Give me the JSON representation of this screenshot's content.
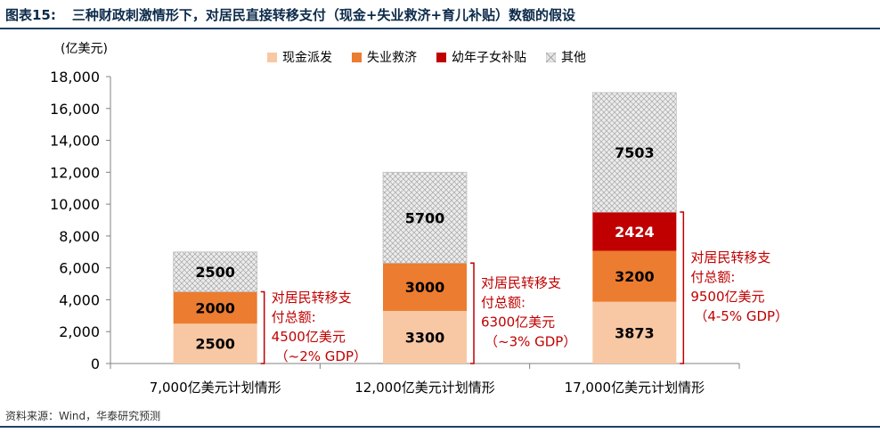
{
  "header": {
    "figure_no": "图表15:",
    "title": "三种财政刺激情形下，对居民直接转移支付（现金+失业救济+育儿补贴）数额的假设"
  },
  "footer": {
    "source": "资料来源：Wind，华泰研究预测"
  },
  "colors": {
    "cash": "#f8c8a4",
    "unemployment": "#ec7c30",
    "child": "#c00000",
    "other": "#bfbfbf",
    "annotation": "#c00000",
    "title_rule": "#1f3f66"
  },
  "chart_data": {
    "type": "bar",
    "stacked": true,
    "unit_label": "(亿美元)",
    "ylim": [
      0,
      18000
    ],
    "yticks": [
      "0",
      "2,000",
      "4,000",
      "6,000",
      "8,000",
      "10,000",
      "12,000",
      "14,000",
      "16,000",
      "18,000"
    ],
    "categories": [
      "7,000亿美元计划情形",
      "12,000亿美元计划情形",
      "17,000亿美元计划情形"
    ],
    "series": [
      {
        "name": "现金派发",
        "values": [
          2500,
          3300,
          3873
        ],
        "labels": [
          "2500",
          "3300",
          "3873"
        ]
      },
      {
        "name": "失业救济",
        "values": [
          2000,
          3000,
          3200
        ],
        "labels": [
          "2000",
          "3000",
          "3200"
        ]
      },
      {
        "name": "幼年子女补贴",
        "values": [
          0,
          0,
          2424
        ],
        "labels": [
          "",
          "",
          "2424"
        ]
      },
      {
        "name": "其他",
        "values": [
          2500,
          5700,
          7503
        ],
        "labels": [
          "2500",
          "5700",
          "7503"
        ]
      }
    ],
    "annotations": [
      {
        "line1": "对居民转移支",
        "line2": "付总额:",
        "line3": "4500亿美元",
        "line4": "（~2% GDP）",
        "from": 0,
        "to": 4500
      },
      {
        "line1": "对居民转移支",
        "line2": "付总额:",
        "line3": "6300亿美元",
        "line4": "（~3% GDP）",
        "from": 0,
        "to": 6300
      },
      {
        "line1": "对居民转移支",
        "line2": "付总额:",
        "line3": "9500亿美元",
        "line4": "（4-5% GDP）",
        "from": 0,
        "to": 9500
      }
    ]
  }
}
